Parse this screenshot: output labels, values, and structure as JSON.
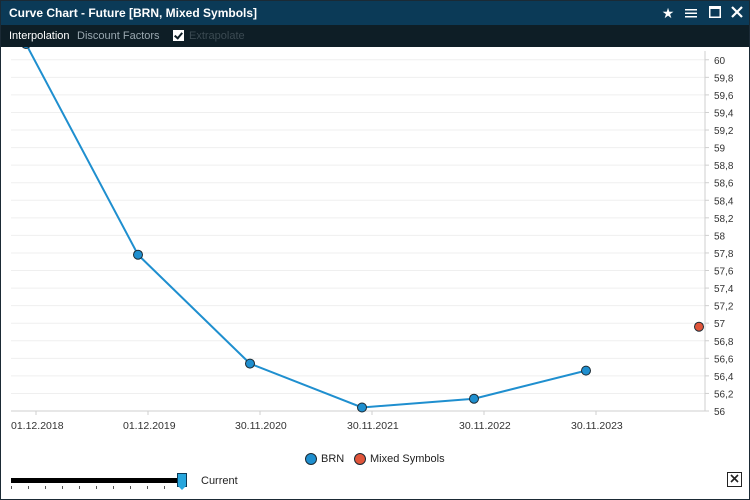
{
  "window": {
    "title": "Curve Chart - Future [BRN, Mixed Symbols]",
    "icons": [
      "star-icon",
      "menu-icon",
      "maximize-icon",
      "close-icon"
    ]
  },
  "toolbar": {
    "interpolation_label": "Interpolation",
    "discount_label": "Discount Factors",
    "extrapolate_label": "Extrapolate",
    "extrapolate_checked": true
  },
  "chart_data": {
    "type": "line",
    "x_tick_labels": [
      "01.12.2018",
      "01.12.2019",
      "30.11.2020",
      "30.11.2021",
      "30.11.2022",
      "30.11.2023"
    ],
    "y_tick_labels": [
      "56",
      "56,2",
      "56,4",
      "56,6",
      "56,8",
      "57",
      "57,2",
      "57,4",
      "57,6",
      "57,8",
      "58",
      "58,2",
      "58,4",
      "58,6",
      "58,8",
      "59",
      "59,2",
      "59,4",
      "59,6",
      "59,8",
      "60"
    ],
    "ylim": [
      56,
      60.1
    ],
    "y_axis_position": "right",
    "grid": true,
    "legend_position": "bottom-center",
    "series": [
      {
        "name": "BRN",
        "color": "#1f8fcf",
        "points": [
          {
            "x": "01.12.2018",
            "y": 60.18
          },
          {
            "x": "01.12.2019",
            "y": 57.78
          },
          {
            "x": "30.11.2020",
            "y": 56.54
          },
          {
            "x": "30.11.2021",
            "y": 56.04
          },
          {
            "x": "30.11.2022",
            "y": 56.14
          },
          {
            "x": "30.11.2023",
            "y": 56.46
          }
        ]
      },
      {
        "name": "Mixed Symbols",
        "color": "#e0553a",
        "points": [
          {
            "x": "30.11.2024",
            "y": 56.96
          }
        ]
      }
    ]
  },
  "slider": {
    "label": "Current",
    "value": 1.0
  }
}
